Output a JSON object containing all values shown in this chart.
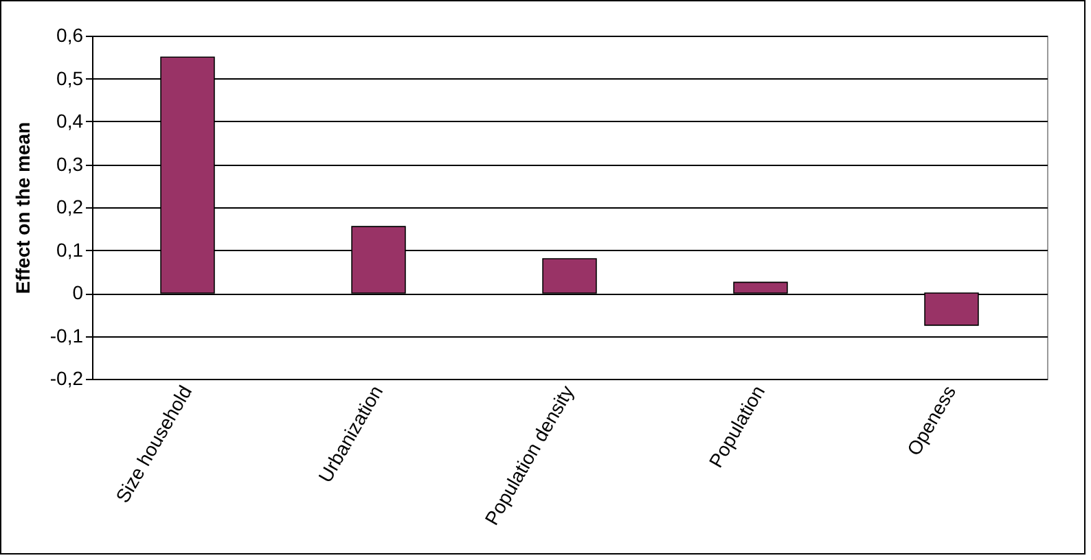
{
  "chart_data": {
    "type": "bar",
    "ylabel": "Effect on the mean",
    "categories": [
      "Size household",
      "Urbanization",
      "Population density",
      "Population",
      "Openess"
    ],
    "values": [
      0.55,
      0.155,
      0.08,
      0.025,
      -0.075
    ],
    "color": "#993366",
    "ylim": [
      -0.2,
      0.6
    ],
    "yticks": [
      {
        "value": -0.2,
        "label": "-0,2"
      },
      {
        "value": -0.1,
        "label": "-0,1"
      },
      {
        "value": 0,
        "label": "0"
      },
      {
        "value": 0.1,
        "label": "0,1"
      },
      {
        "value": 0.2,
        "label": "0,2"
      },
      {
        "value": 0.3,
        "label": "0,3"
      },
      {
        "value": 0.4,
        "label": "0,4"
      },
      {
        "value": 0.5,
        "label": "0,5"
      },
      {
        "value": 0.6,
        "label": "0,6"
      }
    ],
    "grid": "y"
  }
}
